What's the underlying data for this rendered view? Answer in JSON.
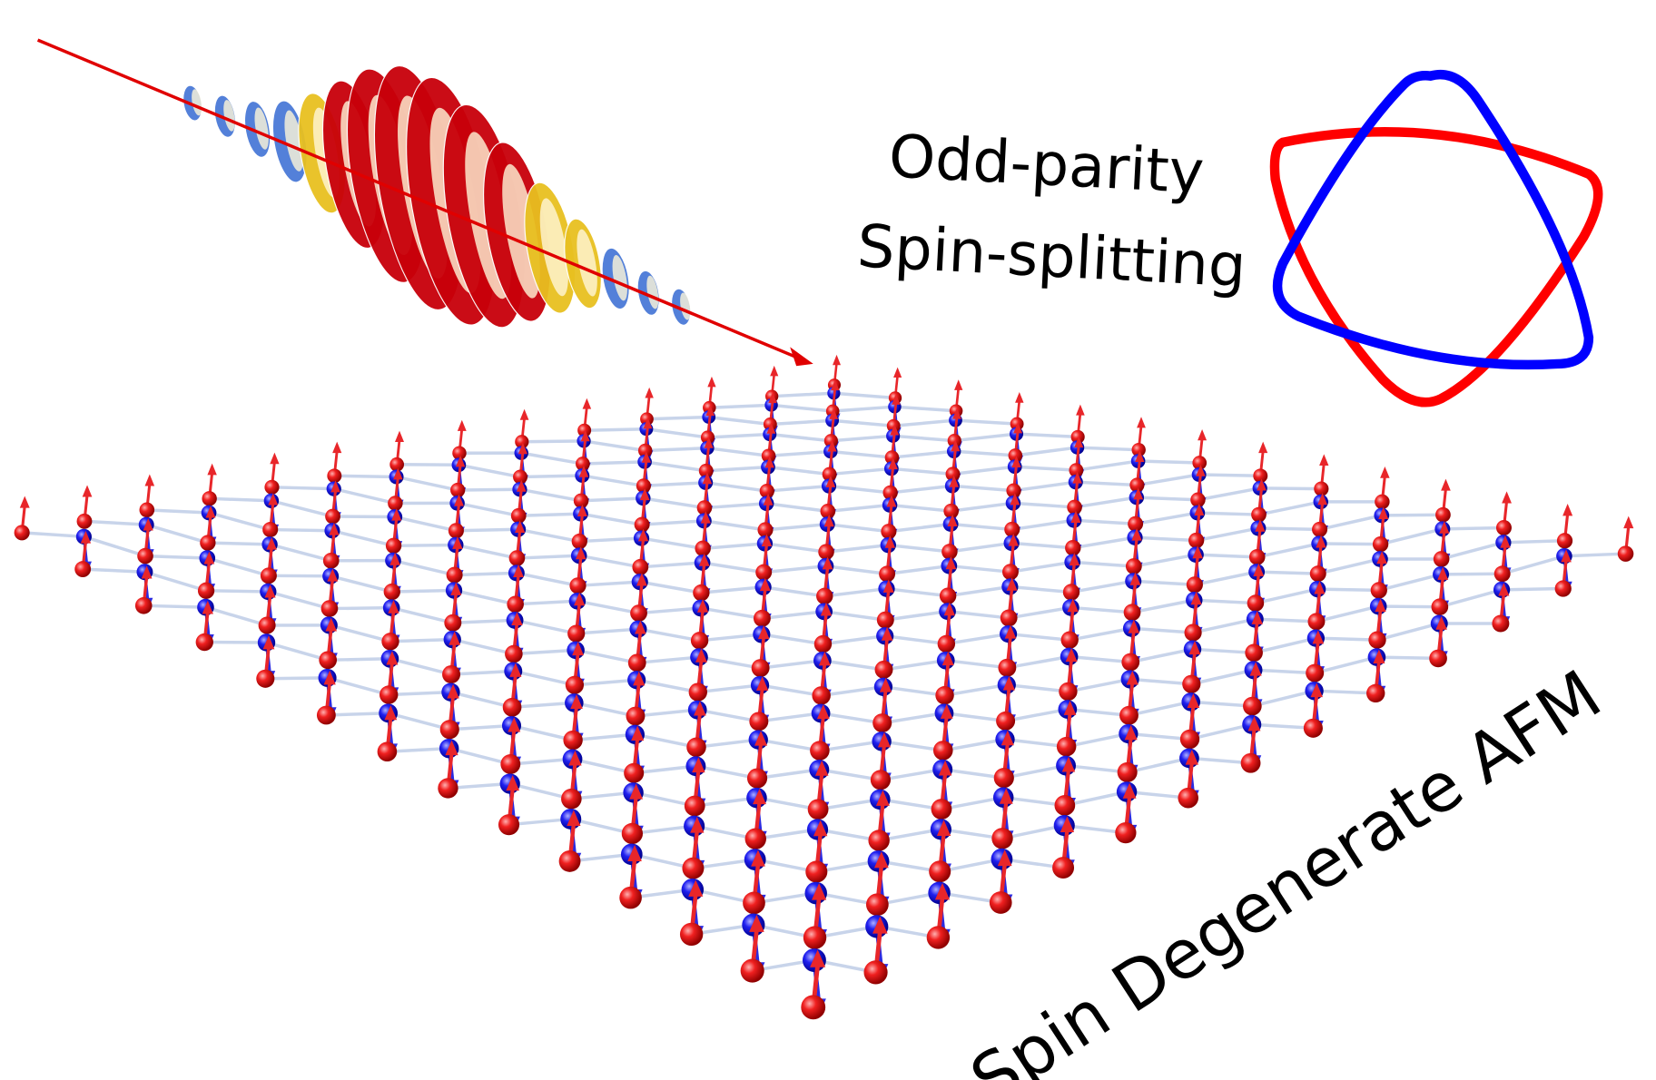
{
  "labels": {
    "line1": "Odd-parity",
    "line2": "Spin-splitting",
    "afm": "Spin Degenerate AFM"
  },
  "colors": {
    "spin_up": "#e8262a",
    "spin_down": "#2a2ae0",
    "bond": "#c8d4ea",
    "pulse_red": "#c8000a",
    "pulse_yellow": "#e8c020",
    "pulse_blue": "#4a7ad8"
  }
}
